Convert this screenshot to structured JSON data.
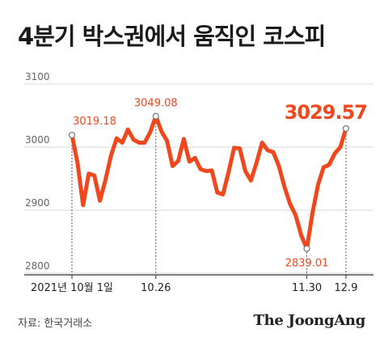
{
  "title": "4분기 박스권에서 움직인 코스피",
  "source": "자료: 한국거래소",
  "logo": "The JoongAng",
  "colors": {
    "line": "#f0471d",
    "grid": "#d9d9d9",
    "axis": "#444444",
    "label": "#f0471d"
  },
  "chart_data": {
    "type": "line",
    "title": "4분기 박스권에서 움직인 코스피",
    "ylim": [
      2800,
      3100
    ],
    "yticks": [
      2800,
      2900,
      3000,
      3100
    ],
    "grid": "horizontal",
    "xlabels": [
      {
        "index": 0,
        "label": "2021년 10월 1일"
      },
      {
        "index": 15,
        "label": "10.26"
      },
      {
        "index": 42,
        "label": "11.30"
      },
      {
        "index": 49,
        "label": "12.9"
      }
    ],
    "annotations": [
      {
        "index": 0,
        "text": "3019.18",
        "big": false
      },
      {
        "index": 15,
        "text": "3049.08",
        "big": false
      },
      {
        "index": 42,
        "text": "2839.01",
        "big": false
      },
      {
        "index": 49,
        "text": "3029.57",
        "big": true
      }
    ],
    "series": [
      {
        "values": [
          3019.18,
          2975,
          2908,
          2958,
          2955,
          2915,
          2948,
          2987,
          3014,
          3007,
          3028,
          3012,
          3007,
          3007,
          3024,
          3049.08,
          3025,
          3010,
          2970,
          2978,
          3013,
          2977,
          2983,
          2965,
          2962,
          2963,
          2928,
          2925,
          2960,
          2999,
          2998,
          2962,
          2947,
          2975,
          3007,
          2995,
          2992,
          2970,
          2937,
          2910,
          2892,
          2860,
          2839.01,
          2895,
          2940,
          2968,
          2972,
          2990,
          3000,
          3029.57
        ]
      }
    ]
  }
}
